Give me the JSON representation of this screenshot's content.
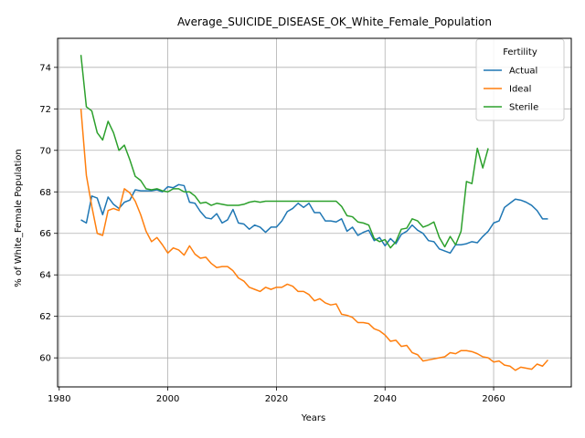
{
  "chart_data": {
    "type": "line",
    "title": "Average_SUICIDE_DISEASE_OK_White_Female_Population",
    "xlabel": "Years",
    "ylabel": "% of White_Female Population",
    "xlim": [
      1979.7,
      2074.3
    ],
    "ylim": [
      58.6,
      75.4
    ],
    "xticks": [
      1980,
      2000,
      2020,
      2040,
      2060
    ],
    "yticks": [
      60,
      62,
      64,
      66,
      68,
      70,
      72,
      74
    ],
    "grid": true,
    "legend": {
      "title": "Fertility",
      "placement": "top-right"
    },
    "series": [
      {
        "name": "Actual",
        "color": "#1f77b4",
        "x": [
          1984,
          1985,
          1986,
          1987,
          1988,
          1989,
          1990,
          1991,
          1992,
          1993,
          1994,
          1995,
          1996,
          1997,
          1998,
          1999,
          2000,
          2001,
          2002,
          2003,
          2004,
          2005,
          2006,
          2007,
          2008,
          2009,
          2010,
          2011,
          2012,
          2013,
          2014,
          2015,
          2016,
          2017,
          2018,
          2019,
          2020,
          2021,
          2022,
          2023,
          2024,
          2025,
          2026,
          2027,
          2028,
          2029,
          2030,
          2031,
          2032,
          2033,
          2034,
          2035,
          2036,
          2037,
          2038,
          2039,
          2040,
          2041,
          2042,
          2043,
          2044,
          2045,
          2046,
          2047,
          2048,
          2049,
          2050,
          2051,
          2052,
          2053,
          2054,
          2055,
          2056,
          2057,
          2058,
          2059,
          2060,
          2061,
          2062,
          2063,
          2064,
          2065,
          2066,
          2067,
          2068,
          2069,
          2070
        ],
        "y": [
          66.65,
          66.5,
          67.8,
          67.7,
          66.9,
          67.75,
          67.4,
          67.2,
          67.5,
          67.6,
          68.1,
          68.05,
          68.05,
          68.05,
          68.1,
          68.0,
          68.25,
          68.2,
          68.35,
          68.3,
          67.5,
          67.45,
          67.05,
          66.75,
          66.7,
          66.95,
          66.5,
          66.65,
          67.15,
          66.5,
          66.45,
          66.2,
          66.4,
          66.3,
          66.05,
          66.3,
          66.3,
          66.6,
          67.05,
          67.2,
          67.45,
          67.25,
          67.45,
          67.0,
          67.0,
          66.6,
          66.6,
          66.55,
          66.7,
          66.1,
          66.3,
          65.9,
          66.05,
          66.15,
          65.65,
          65.8,
          65.4,
          65.75,
          65.5,
          65.95,
          66.1,
          66.4,
          66.15,
          66.0,
          65.65,
          65.6,
          65.25,
          65.15,
          65.05,
          65.45,
          65.45,
          65.5,
          65.6,
          65.55,
          65.85,
          66.1,
          66.5,
          66.6,
          67.25,
          67.45,
          67.65,
          67.6,
          67.5,
          67.35,
          67.1,
          66.7,
          66.7
        ]
      },
      {
        "name": "Ideal",
        "color": "#ff7f0e",
        "x": [
          1984,
          1985,
          1986,
          1987,
          1988,
          1989,
          1990,
          1991,
          1992,
          1993,
          1994,
          1995,
          1996,
          1997,
          1998,
          1999,
          2000,
          2001,
          2002,
          2003,
          2004,
          2005,
          2006,
          2007,
          2008,
          2009,
          2010,
          2011,
          2012,
          2013,
          2014,
          2015,
          2016,
          2017,
          2018,
          2019,
          2020,
          2021,
          2022,
          2023,
          2024,
          2025,
          2026,
          2027,
          2028,
          2029,
          2030,
          2031,
          2032,
          2033,
          2034,
          2035,
          2036,
          2037,
          2038,
          2039,
          2040,
          2041,
          2042,
          2043,
          2044,
          2045,
          2046,
          2047,
          2048,
          2049,
          2050,
          2051,
          2052,
          2053,
          2054,
          2055,
          2056,
          2057,
          2058,
          2059,
          2060,
          2061,
          2062,
          2063,
          2064,
          2065,
          2066,
          2067,
          2068,
          2069,
          2070
        ],
        "y": [
          72.0,
          68.8,
          67.3,
          66.0,
          65.9,
          67.1,
          67.2,
          67.1,
          68.15,
          67.95,
          67.55,
          66.9,
          66.1,
          65.6,
          65.8,
          65.45,
          65.05,
          65.3,
          65.2,
          64.95,
          65.4,
          65.0,
          64.8,
          64.85,
          64.55,
          64.35,
          64.4,
          64.4,
          64.2,
          63.85,
          63.7,
          63.4,
          63.3,
          63.2,
          63.4,
          63.3,
          63.4,
          63.4,
          63.55,
          63.45,
          63.2,
          63.2,
          63.05,
          62.75,
          62.85,
          62.65,
          62.55,
          62.6,
          62.1,
          62.05,
          61.95,
          61.7,
          61.7,
          61.65,
          61.4,
          61.3,
          61.1,
          60.8,
          60.85,
          60.55,
          60.6,
          60.25,
          60.15,
          59.85,
          59.9,
          59.95,
          60.0,
          60.05,
          60.25,
          60.2,
          60.35,
          60.35,
          60.3,
          60.2,
          60.05,
          60.0,
          59.8,
          59.85,
          59.65,
          59.6,
          59.4,
          59.55,
          59.5,
          59.45,
          59.7,
          59.6,
          59.9
        ]
      },
      {
        "name": "Sterile",
        "color": "#2ca02c",
        "x": [
          1984,
          1985,
          1986,
          1987,
          1988,
          1989,
          1990,
          1991,
          1992,
          1993,
          1994,
          1995,
          1996,
          1997,
          1998,
          1999,
          2000,
          2001,
          2002,
          2003,
          2004,
          2005,
          2006,
          2007,
          2008,
          2009,
          2010,
          2011,
          2012,
          2013,
          2014,
          2015,
          2016,
          2017,
          2018,
          2019,
          2020,
          2021,
          2022,
          2023,
          2024,
          2025,
          2026,
          2027,
          2028,
          2029,
          2030,
          2031,
          2032,
          2033,
          2034,
          2035,
          2036,
          2037,
          2038,
          2039,
          2040,
          2041,
          2042,
          2043,
          2044,
          2045,
          2046,
          2047,
          2048,
          2049,
          2050,
          2051,
          2052,
          2053,
          2054,
          2055,
          2056,
          2057,
          2058,
          2059
        ],
        "y": [
          74.6,
          72.1,
          71.9,
          70.85,
          70.5,
          71.4,
          70.85,
          70.0,
          70.25,
          69.55,
          68.75,
          68.55,
          68.15,
          68.1,
          68.15,
          68.05,
          68.0,
          68.15,
          68.15,
          68.0,
          68.0,
          67.8,
          67.45,
          67.5,
          67.35,
          67.45,
          67.4,
          67.35,
          67.35,
          67.35,
          67.4,
          67.5,
          67.55,
          67.5,
          67.55,
          67.55,
          67.55,
          67.55,
          67.55,
          67.55,
          67.55,
          67.55,
          67.55,
          67.55,
          67.55,
          67.55,
          67.55,
          67.55,
          67.3,
          66.85,
          66.8,
          66.55,
          66.5,
          66.4,
          65.75,
          65.6,
          65.7,
          65.3,
          65.6,
          66.2,
          66.25,
          66.7,
          66.6,
          66.3,
          66.4,
          66.55,
          65.8,
          65.35,
          65.85,
          65.45,
          66.1,
          68.5,
          68.4,
          70.1,
          69.15,
          70.1
        ]
      }
    ]
  }
}
